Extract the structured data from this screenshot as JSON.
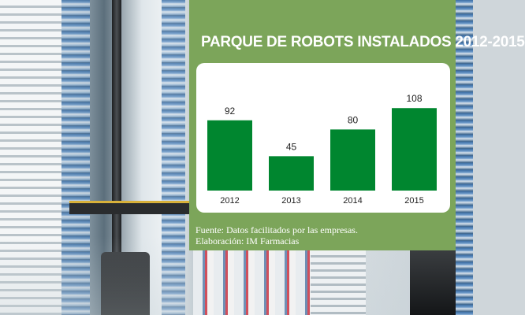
{
  "chart_data": {
    "type": "bar",
    "title": "PARQUE DE ROBOTS INSTALADOS 2012-2015",
    "categories": [
      "2012",
      "2013",
      "2014",
      "2015"
    ],
    "values": [
      92,
      45,
      80,
      108
    ],
    "ylim": [
      0,
      130
    ],
    "grid": false,
    "bar_color": "#00862f",
    "data_labels": true
  },
  "panel": {
    "background": "#7ca55a"
  },
  "footer": {
    "source": "Fuente: Datos facilitados por las empresas.",
    "credit": "Elaboración: IM Farmacias"
  }
}
